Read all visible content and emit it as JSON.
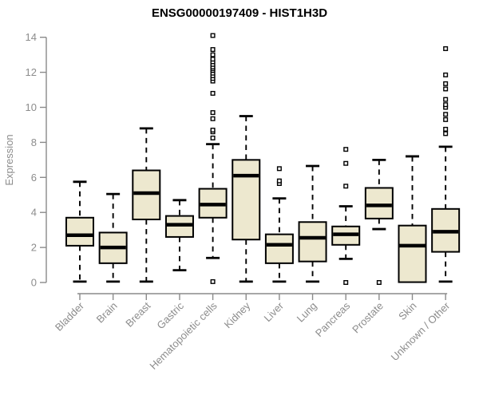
{
  "chart_data": {
    "type": "boxplot",
    "title": "ENSG00000197409 - HIST1H3D",
    "ylabel": "Expression",
    "xlabel": "",
    "ylim": [
      0,
      14
    ],
    "yticks": [
      0,
      2,
      4,
      6,
      8,
      10,
      12,
      14
    ],
    "grid": "off",
    "legend": "none",
    "categories": [
      "Bladder",
      "Brain",
      "Breast",
      "Gastric",
      "Hematopoietic cells",
      "Kidney",
      "Liver",
      "Lung",
      "Pancreas",
      "Prostate",
      "Skin",
      "Unknown / Other"
    ],
    "boxes": [
      {
        "label": "Bladder",
        "low": 0.05,
        "q1": 2.1,
        "median": 2.7,
        "q3": 3.7,
        "high": 5.75,
        "outliers": []
      },
      {
        "label": "Brain",
        "low": 0.05,
        "q1": 1.1,
        "median": 2.0,
        "q3": 2.85,
        "high": 5.05,
        "outliers": []
      },
      {
        "label": "Breast",
        "low": 0.05,
        "q1": 3.6,
        "median": 5.1,
        "q3": 6.4,
        "high": 8.8,
        "outliers": []
      },
      {
        "label": "Gastric",
        "low": 0.7,
        "q1": 2.6,
        "median": 3.3,
        "q3": 3.8,
        "high": 4.7,
        "outliers": []
      },
      {
        "label": "Hematopoietic cells",
        "low": 1.4,
        "q1": 3.7,
        "median": 4.45,
        "q3": 5.35,
        "high": 7.9,
        "outliers": [
          0.05,
          8.25,
          8.6,
          8.7,
          9.35,
          9.7,
          10.8,
          11.5,
          11.65,
          11.8,
          11.95,
          12.1,
          12.2,
          12.3,
          12.45,
          12.6,
          12.75,
          13.0,
          13.3,
          14.1
        ]
      },
      {
        "label": "Kidney",
        "low": 0.05,
        "q1": 2.45,
        "median": 6.1,
        "q3": 7.0,
        "high": 9.5,
        "outliers": []
      },
      {
        "label": "Liver",
        "low": 0.05,
        "q1": 1.1,
        "median": 2.15,
        "q3": 2.75,
        "high": 4.8,
        "outliers": [
          5.65,
          5.8,
          6.5
        ]
      },
      {
        "label": "Lung",
        "low": 0.05,
        "q1": 1.2,
        "median": 2.55,
        "q3": 3.45,
        "high": 6.65,
        "outliers": []
      },
      {
        "label": "Pancreas",
        "low": 1.35,
        "q1": 2.15,
        "median": 2.75,
        "q3": 3.2,
        "high": 4.35,
        "outliers": [
          0.0,
          5.5,
          6.8,
          7.6
        ]
      },
      {
        "label": "Prostate",
        "low": 3.05,
        "q1": 3.65,
        "median": 4.4,
        "q3": 5.4,
        "high": 7.0,
        "outliers": [
          0.0
        ]
      },
      {
        "label": "Skin",
        "low": 0.02,
        "q1": 0.02,
        "median": 2.1,
        "q3": 3.25,
        "high": 7.2,
        "outliers": []
      },
      {
        "label": "Unknown / Other",
        "low": 0.05,
        "q1": 1.75,
        "median": 2.9,
        "q3": 4.2,
        "high": 7.75,
        "outliers": [
          8.5,
          8.75,
          9.3,
          9.6,
          10.0,
          10.15,
          10.45,
          11.05,
          11.35,
          11.85,
          13.35
        ]
      }
    ],
    "colors": {
      "box_fill": "#ede8cf",
      "box_stroke": "#000000",
      "median": "#000000",
      "whisker": "#000000",
      "axis": "#8a8a8a",
      "tick_label": "#8c8c8c",
      "title": "#000000",
      "background": "#ffffff"
    }
  }
}
